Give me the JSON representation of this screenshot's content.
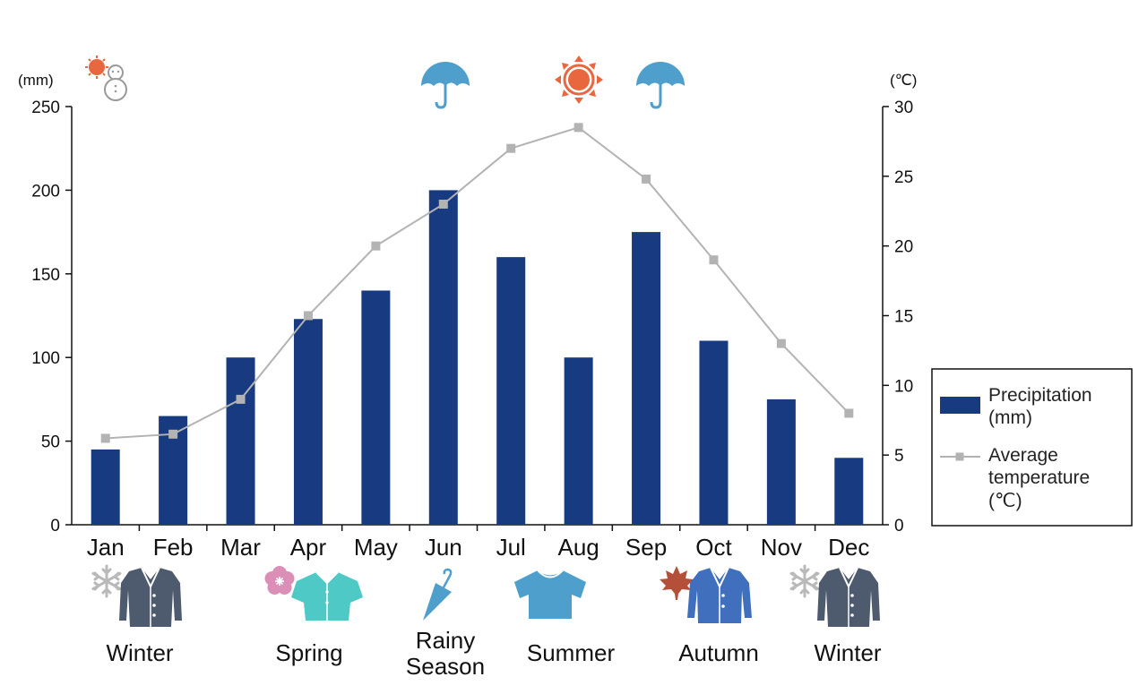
{
  "chart_data": {
    "type": "bar+line",
    "categories": [
      "Jan",
      "Feb",
      "Mar",
      "Apr",
      "May",
      "Jun",
      "Jul",
      "Aug",
      "Sep",
      "Oct",
      "Nov",
      "Dec"
    ],
    "series": [
      {
        "name": "Precipitation (mm)",
        "type": "bar",
        "axis": "left",
        "color": "#173a80",
        "values": [
          45,
          65,
          100,
          123,
          140,
          200,
          160,
          100,
          175,
          110,
          75,
          40
        ]
      },
      {
        "name": "Average temperature (℃)",
        "type": "line",
        "axis": "right",
        "color": "#b3b3b3",
        "values": [
          6.2,
          6.5,
          9,
          15,
          20,
          23,
          27,
          28.5,
          24.8,
          19,
          13,
          8
        ]
      }
    ],
    "y_left": {
      "unit": "(mm)",
      "ylim": [
        0,
        250
      ],
      "ticks": [
        "0",
        "50",
        "100",
        "150",
        "200",
        "250"
      ]
    },
    "y_right": {
      "unit": "(℃)",
      "ylim": [
        0,
        30
      ],
      "ticks": [
        "0",
        "5",
        "10",
        "15",
        "20",
        "25",
        "30"
      ]
    },
    "legend": {
      "placement": "right",
      "precipitation_lines": [
        "Precipitation",
        "(mm)"
      ],
      "temperature_lines": [
        "Average",
        "temperature",
        "(℃)"
      ]
    },
    "grid": false
  },
  "seasons": [
    {
      "lines": [
        "Winter"
      ],
      "clothing": "coat-icon",
      "extra": "snowflake-icon",
      "color": "#4e5a6e"
    },
    {
      "lines": [
        "Spring"
      ],
      "clothing": "shirt-icon",
      "extra": "cherry-blossom-icon",
      "color": "#4ec9c6"
    },
    {
      "lines": [
        "Rainy",
        "Season"
      ],
      "clothing": "",
      "extra": "umbrella-icon",
      "color": "#4e9fcc"
    },
    {
      "lines": [
        "Summer"
      ],
      "clothing": "tshirt-icon",
      "extra": "",
      "color": "#4e9fcc"
    },
    {
      "lines": [
        "Autumn"
      ],
      "clothing": "jacket-icon",
      "extra": "maple-leaf-icon",
      "color": "#3f6fbd"
    },
    {
      "lines": [
        "Winter"
      ],
      "clothing": "coat-icon",
      "extra": "snowflake-icon",
      "color": "#4e5a6e"
    }
  ],
  "weather_icons": [
    {
      "name": "sun-snowman-icon",
      "month": "Jan"
    },
    {
      "name": "umbrella-icon",
      "month": "Jun"
    },
    {
      "name": "sun-icon",
      "month": "Aug"
    },
    {
      "name": "umbrella-icon",
      "month": "Sep"
    }
  ]
}
